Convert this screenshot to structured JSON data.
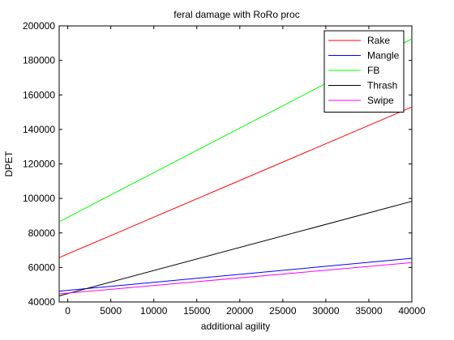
{
  "chart_data": {
    "type": "line",
    "title": "feral damage with RoRo proc",
    "xlabel": "additional agility",
    "ylabel": "DPET",
    "xlim": [
      -1000,
      40000
    ],
    "ylim": [
      40000,
      200000
    ],
    "xticks": [
      0,
      5000,
      10000,
      15000,
      20000,
      25000,
      30000,
      35000,
      40000
    ],
    "yticks": [
      40000,
      60000,
      80000,
      100000,
      120000,
      140000,
      160000,
      180000,
      200000
    ],
    "grid": false,
    "legend_position": "top-right",
    "series": [
      {
        "name": "Rake",
        "color": "#ff0000",
        "x": [
          -1000,
          40000
        ],
        "y": [
          65700,
          153000
        ]
      },
      {
        "name": "Mangle",
        "color": "#0000ff",
        "x": [
          -1000,
          40000
        ],
        "y": [
          46300,
          65300
        ]
      },
      {
        "name": "FB",
        "color": "#00ff00",
        "x": [
          -1000,
          40000
        ],
        "y": [
          86500,
          192500
        ]
      },
      {
        "name": "Thrash",
        "color": "#000000",
        "x": [
          -1000,
          40000
        ],
        "y": [
          43500,
          98300
        ]
      },
      {
        "name": "Swipe",
        "color": "#ff00ff",
        "x": [
          -1000,
          40000
        ],
        "y": [
          44700,
          62800
        ]
      }
    ]
  }
}
